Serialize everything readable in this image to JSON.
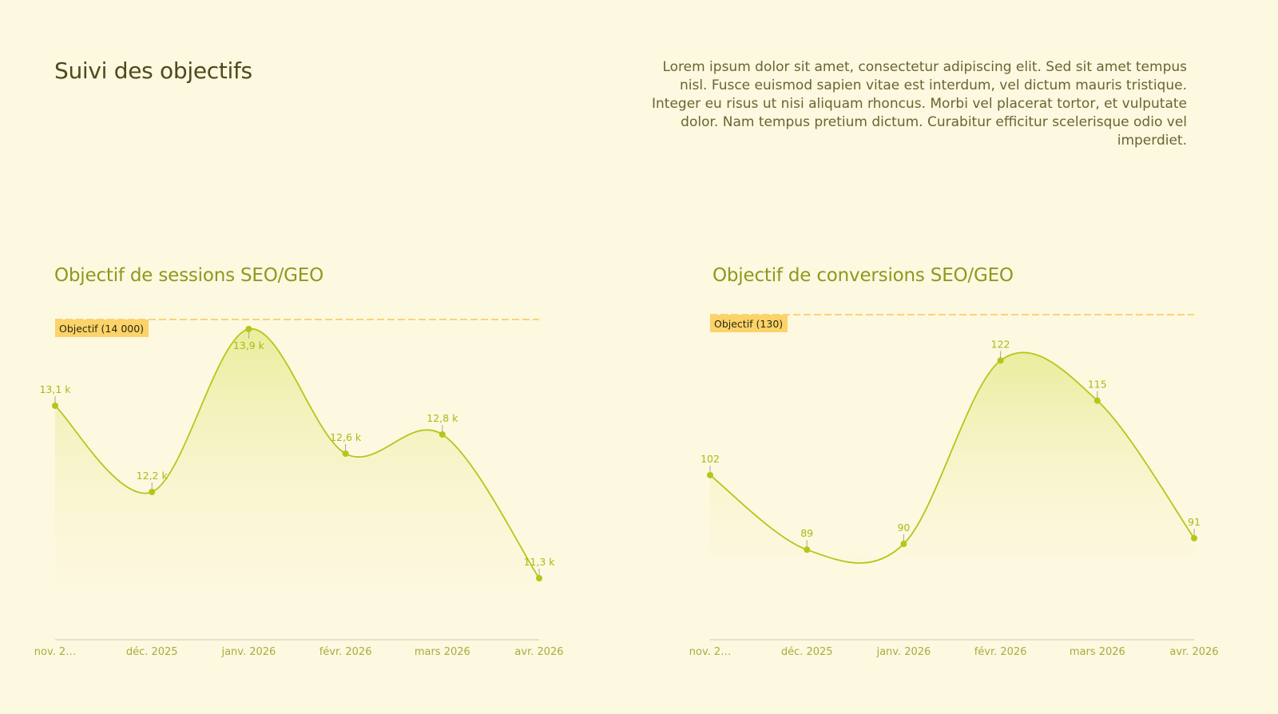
{
  "page": {
    "title": "Suivi des objectifs",
    "description": "Lorem ipsum dolor sit amet, consectetur adipiscing elit. Sed sit amet tempus nisl. Fusce euismod sapien vitae est interdum, vel dictum mauris tristique. Integer eu risus ut nisi aliquam rhoncus. Morbi vel placerat tortor, et vulputate dolor. Nam tempus pretium dictum. Curabitur efficitur scelerisque odio vel imperdiet."
  },
  "colors": {
    "background": "#fdf8e0",
    "line": "#b5c61a",
    "goal": "#f7c75a",
    "goal_label_bg": "#fbd36a"
  },
  "chart_data": [
    {
      "type": "area",
      "title": "Objectif de sessions SEO/GEO",
      "categories": [
        "nov. 2…",
        "déc. 2025",
        "janv. 2026",
        "févr. 2026",
        "mars 2026",
        "avr. 2026"
      ],
      "values": [
        13100,
        12200,
        13900,
        12600,
        12800,
        11300
      ],
      "value_labels": [
        "13,1 k",
        "12,2 k",
        "13,9 k",
        "12,6 k",
        "12,8 k",
        "11,3 k"
      ],
      "goal": 14000,
      "goal_label": "Objectif (14 000)",
      "ylim": [
        11000,
        14050
      ],
      "grid": false,
      "legend": "none"
    },
    {
      "type": "area",
      "title": "Objectif de conversions SEO/GEO",
      "categories": [
        "nov. 2…",
        "déc. 2025",
        "janv. 2026",
        "févr. 2026",
        "mars 2026",
        "avr. 2026"
      ],
      "values": [
        102,
        89,
        90,
        122,
        115,
        91
      ],
      "value_labels": [
        "102",
        "89",
        "90",
        "122",
        "115",
        "91"
      ],
      "goal": 130,
      "goal_label": "Objectif (130)",
      "ylim": [
        79,
        130
      ],
      "grid": false,
      "legend": "none"
    }
  ]
}
